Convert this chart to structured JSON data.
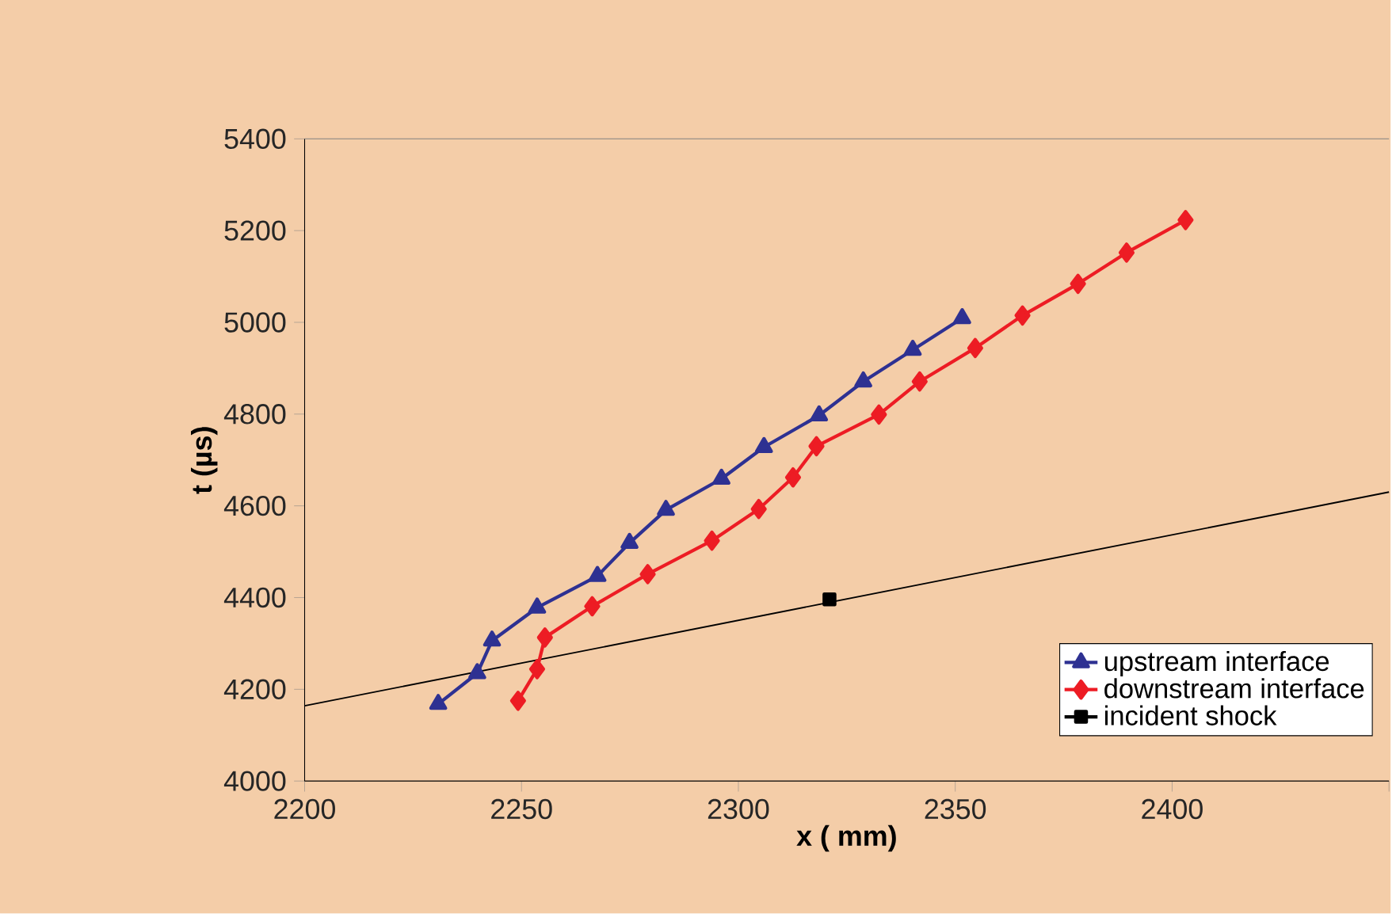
{
  "chart_data": {
    "type": "line",
    "xlabel": "x ( mm)",
    "ylabel": "t (µs)",
    "xlim": [
      2200,
      2450
    ],
    "xticks": [
      2200,
      2250,
      2300,
      2350,
      2400,
      {
        "value": 2450,
        "label": null
      }
    ],
    "ylim": [
      4000,
      5400
    ],
    "yticks": [
      4000,
      4200,
      4400,
      4600,
      4800,
      5000,
      5200,
      5400
    ],
    "grid": false,
    "legend": "bottom right",
    "line_style": "solid",
    "series": [
      {
        "type": "line",
        "color": "#000000",
        "marker": "none",
        "x": [
          2200,
          2450
        ],
        "values": [
          4164,
          4630
        ]
      },
      {
        "name": "upstream interface",
        "color": "#2e3192",
        "marker": "triangle",
        "x": [
          2230.8,
          2239.8,
          2243.2,
          2253.6,
          2267.5,
          2274.9,
          2283.3,
          2296.1,
          2305.9,
          2318.6,
          2328.8,
          2340.2,
          2351.6
        ],
        "values": [
          4168,
          4235,
          4306,
          4378,
          4447,
          4519,
          4591,
          4659,
          4728,
          4797,
          4871,
          4940,
          5009
        ]
      },
      {
        "name": "downstream interface",
        "color": "#ed1c24",
        "marker": "diamond",
        "x": [
          2249.2,
          2253.6,
          2255.4,
          2266.3,
          2279.1,
          2293.9,
          2304.7,
          2312.6,
          2318.0,
          2332.4,
          2341.8,
          2354.6,
          2365.5,
          2378.3,
          2389.5,
          2403.1
        ],
        "values": [
          4175,
          4244,
          4313,
          4381,
          4451,
          4524,
          4593,
          4662,
          4730,
          4799,
          4871,
          4944,
          5015,
          5084,
          5152,
          5223
        ]
      },
      {
        "name": "incident shock",
        "color": "#000000",
        "marker": "square",
        "x": [
          2321
        ],
        "values": [
          4396
        ]
      }
    ]
  }
}
